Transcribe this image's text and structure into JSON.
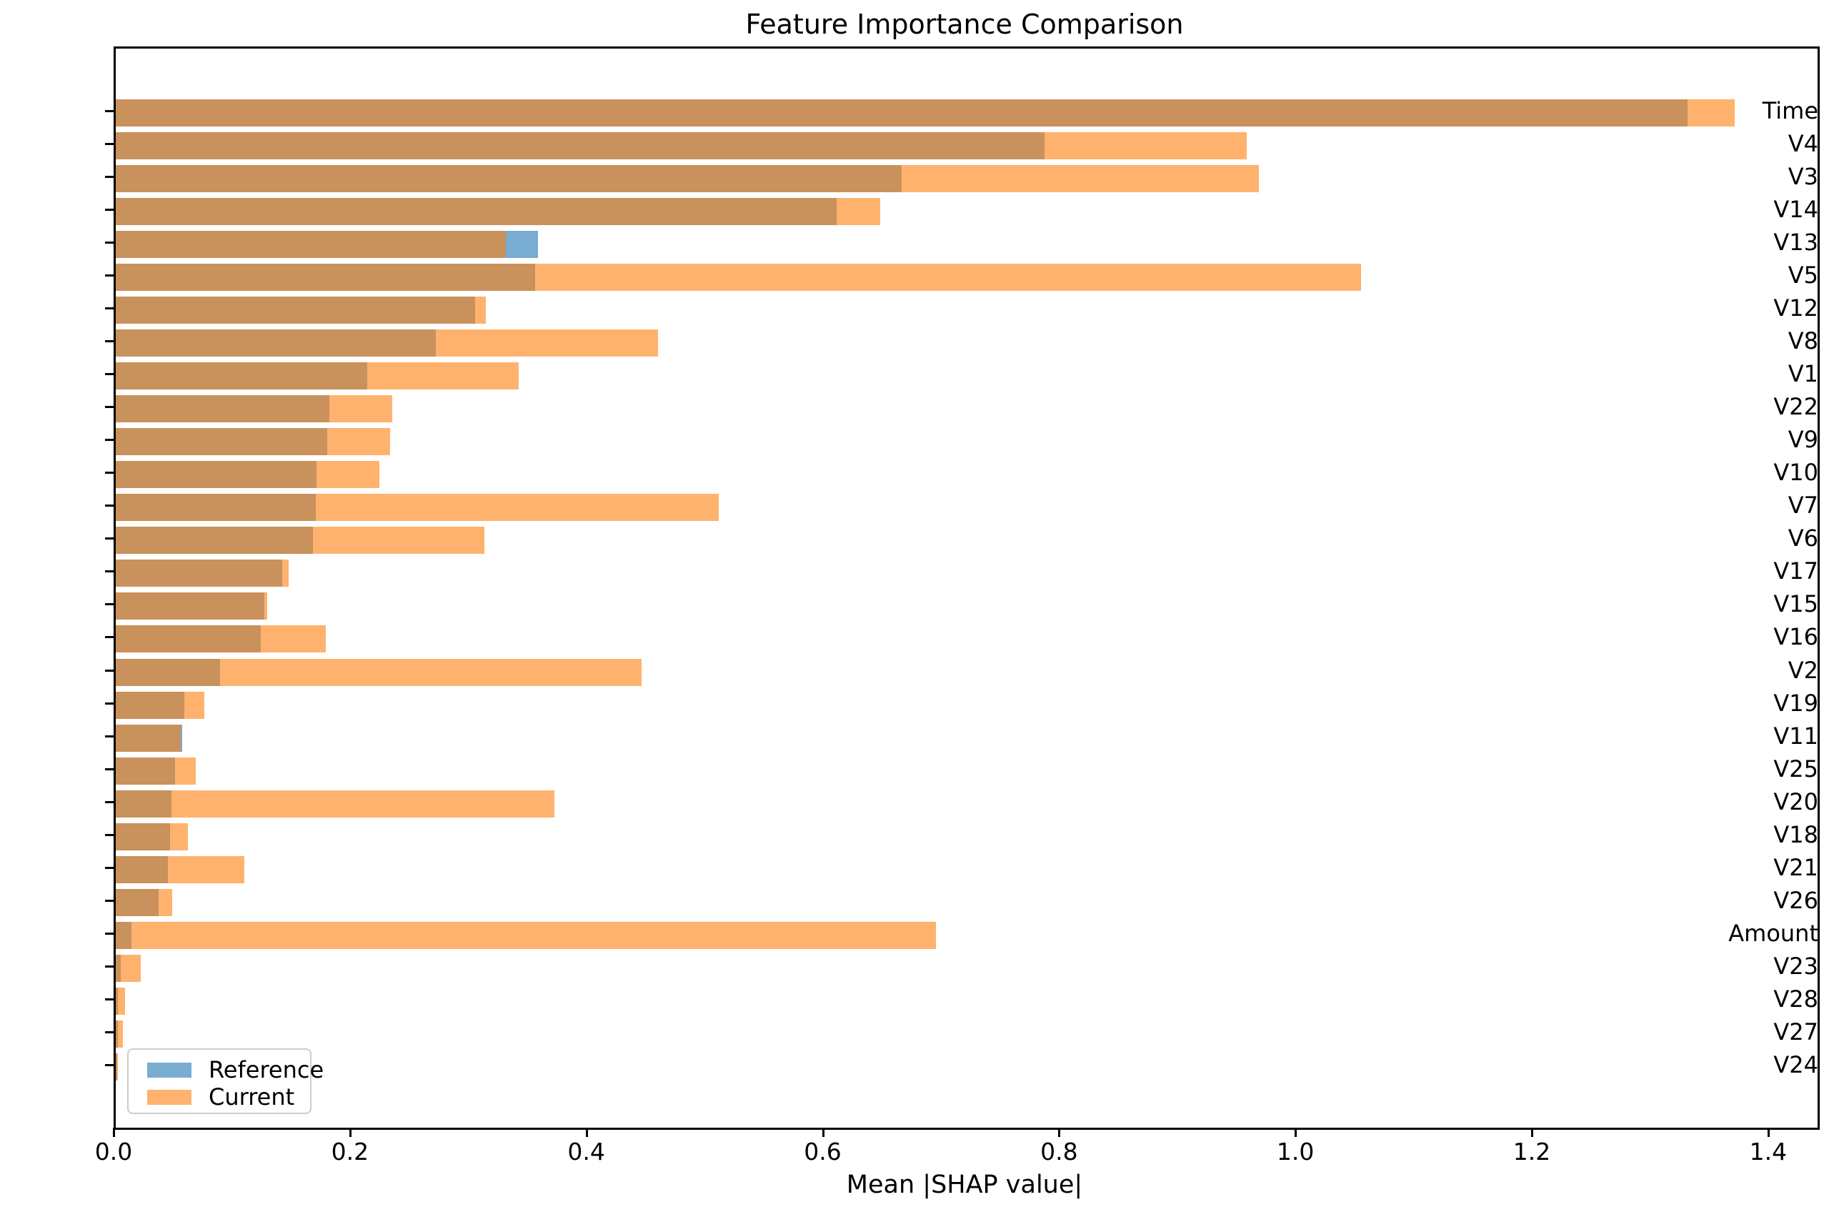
{
  "figure": {
    "title": "Feature Importance Comparison",
    "xlabel": "Mean |SHAP value|"
  },
  "legend": {
    "position": "lower left",
    "entries": [
      {
        "label": "Reference",
        "color": "#1f77b4"
      },
      {
        "label": "Current",
        "color": "#ff7f0e"
      }
    ]
  },
  "x_axis": {
    "tick_labels": [
      "0.0",
      "0.2",
      "0.4",
      "0.6",
      "0.8",
      "1.0",
      "1.2",
      "1.4"
    ]
  },
  "chart_data": {
    "type": "bar",
    "orientation": "horizontal",
    "title": "Feature Importance Comparison",
    "xlabel": "Mean |SHAP value|",
    "ylabel": "",
    "xlim": [
      0,
      1.44
    ],
    "grid": false,
    "legend_position": "lower left",
    "bar_alpha": 0.6,
    "categories": [
      "Time",
      "V4",
      "V3",
      "V14",
      "V13",
      "V5",
      "V12",
      "V8",
      "V1",
      "V22",
      "V9",
      "V10",
      "V7",
      "V6",
      "V17",
      "V15",
      "V16",
      "V2",
      "V19",
      "V11",
      "V25",
      "V20",
      "V18",
      "V21",
      "V26",
      "Amount",
      "V23",
      "V28",
      "V27",
      "V24"
    ],
    "series": [
      {
        "name": "Reference",
        "color": "#1f77b4",
        "values": [
          1.33,
          0.786,
          0.665,
          0.61,
          0.357,
          0.355,
          0.304,
          0.271,
          0.213,
          0.181,
          0.179,
          0.17,
          0.169,
          0.167,
          0.141,
          0.126,
          0.123,
          0.088,
          0.058,
          0.056,
          0.05,
          0.047,
          0.046,
          0.044,
          0.036,
          0.013,
          0.004,
          0.002,
          0.002,
          0.001
        ]
      },
      {
        "name": "Current",
        "color": "#ff7f0e",
        "values": [
          1.37,
          0.957,
          0.967,
          0.647,
          0.33,
          1.054,
          0.313,
          0.459,
          0.341,
          0.234,
          0.232,
          0.223,
          0.51,
          0.312,
          0.146,
          0.128,
          0.178,
          0.445,
          0.075,
          0.055,
          0.068,
          0.371,
          0.061,
          0.109,
          0.048,
          0.694,
          0.021,
          0.008,
          0.006,
          0.002
        ]
      }
    ]
  }
}
